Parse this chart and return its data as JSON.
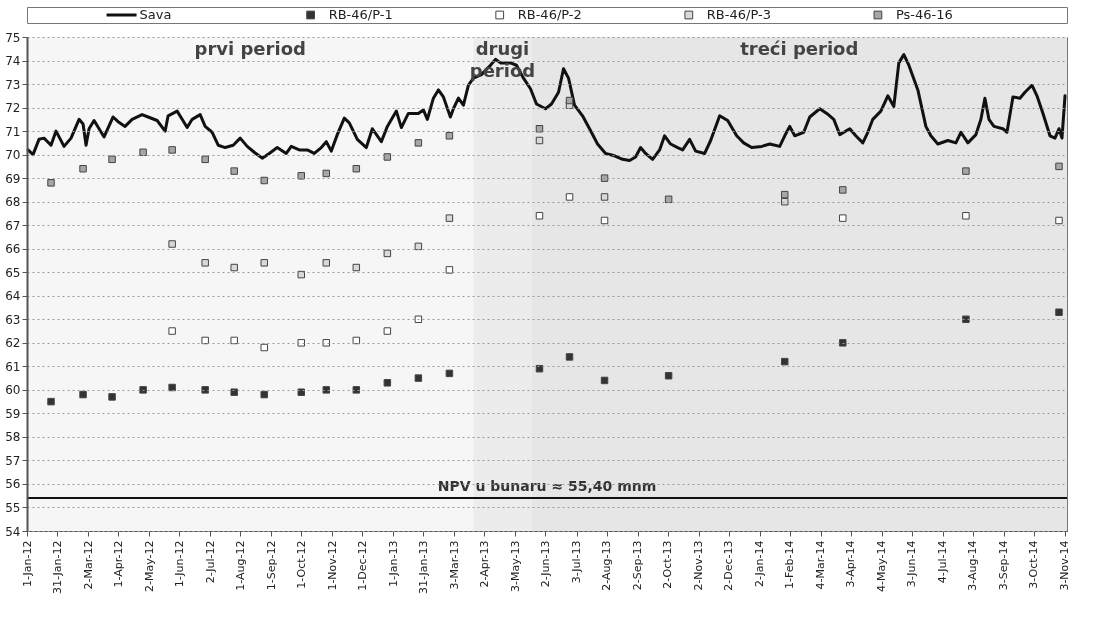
{
  "chart_data": {
    "type": "scatter",
    "grid": "y",
    "legend": "top",
    "xlim": [
      "2012-01-01",
      "2014-11-05"
    ],
    "xticks": [
      {
        "value": "2012-01-01",
        "label": "1-Jan-12"
      },
      {
        "value": "2012-01-31",
        "label": "31-Jan-12"
      },
      {
        "value": "2012-03-02",
        "label": "2-Mar-12"
      },
      {
        "value": "2012-04-01",
        "label": "1-Apr-12"
      },
      {
        "value": "2012-05-02",
        "label": "2-May-12"
      },
      {
        "value": "2012-06-01",
        "label": "1-Jun-12"
      },
      {
        "value": "2012-07-02",
        "label": "2-Jul-12"
      },
      {
        "value": "2012-08-01",
        "label": "1-Aug-12"
      },
      {
        "value": "2012-09-01",
        "label": "1-Sep-12"
      },
      {
        "value": "2012-10-01",
        "label": "1-Oct-12"
      },
      {
        "value": "2012-11-01",
        "label": "1-Nov-12"
      },
      {
        "value": "2012-12-01",
        "label": "1-Dec-12"
      },
      {
        "value": "2013-01-01",
        "label": "1-Jan-13"
      },
      {
        "value": "2013-01-31",
        "label": "31-Jan-13"
      },
      {
        "value": "2013-03-03",
        "label": "3-Mar-13"
      },
      {
        "value": "2013-04-02",
        "label": "2-Apr-13"
      },
      {
        "value": "2013-05-03",
        "label": "3-May-13"
      },
      {
        "value": "2013-06-02",
        "label": "2-Jun-13"
      },
      {
        "value": "2013-07-03",
        "label": "3-Jul-13"
      },
      {
        "value": "2013-08-02",
        "label": "2-Aug-13"
      },
      {
        "value": "2013-09-02",
        "label": "2-Sep-13"
      },
      {
        "value": "2013-10-02",
        "label": "2-Oct-13"
      },
      {
        "value": "2013-11-02",
        "label": "2-Nov-13"
      },
      {
        "value": "2013-12-02",
        "label": "2-Dec-13"
      },
      {
        "value": "2014-01-02",
        "label": "2-Jan-14"
      },
      {
        "value": "2014-02-01",
        "label": "1-Feb-14"
      },
      {
        "value": "2014-03-04",
        "label": "4-Mar-14"
      },
      {
        "value": "2014-04-03",
        "label": "3-Apr-14"
      },
      {
        "value": "2014-05-04",
        "label": "4-May-14"
      },
      {
        "value": "2014-06-03",
        "label": "3-Jun-14"
      },
      {
        "value": "2014-07-04",
        "label": "4-Jul-14"
      },
      {
        "value": "2014-08-03",
        "label": "3-Aug-14"
      },
      {
        "value": "2014-09-03",
        "label": "3-Sep-14"
      },
      {
        "value": "2014-10-03",
        "label": "3-Oct-14"
      },
      {
        "value": "2014-11-03",
        "label": "3-Nov-14"
      }
    ],
    "ylim": [
      54,
      75
    ],
    "yticks": [
      54,
      55,
      56,
      57,
      58,
      59,
      60,
      61,
      62,
      63,
      64,
      65,
      66,
      67,
      68,
      69,
      70,
      71,
      72,
      73,
      74,
      75
    ],
    "x": [
      "2012-01-25",
      "2012-02-26",
      "2012-03-26",
      "2012-04-26",
      "2012-05-25",
      "2012-06-27",
      "2012-07-26",
      "2012-08-25",
      "2012-10-01",
      "2012-10-26",
      "2012-11-25",
      "2012-12-26",
      "2013-01-26",
      "2013-02-26",
      "2013-05-27",
      "2013-06-26",
      "2013-07-31",
      "2013-10-03",
      "2014-01-27",
      "2014-03-26",
      "2014-07-27",
      "2014-10-28"
    ],
    "series": [
      {
        "name": "Sava",
        "type": "line",
        "color": "#111111",
        "x": [
          "2012-01-02",
          "2012-01-07",
          "2012-01-13",
          "2012-01-18",
          "2012-01-25",
          "2012-01-30",
          "2012-02-07",
          "2012-02-14",
          "2012-02-22",
          "2012-02-26",
          "2012-02-29",
          "2012-03-03",
          "2012-03-08",
          "2012-03-13",
          "2012-03-18",
          "2012-03-27",
          "2012-04-01",
          "2012-04-08",
          "2012-04-15",
          "2012-04-25",
          "2012-05-01",
          "2012-05-10",
          "2012-05-18",
          "2012-05-21",
          "2012-05-30",
          "2012-06-04",
          "2012-06-09",
          "2012-06-14",
          "2012-06-22",
          "2012-06-27",
          "2012-07-04",
          "2012-07-10",
          "2012-07-17",
          "2012-07-25",
          "2012-08-01",
          "2012-08-08",
          "2012-08-15",
          "2012-08-23",
          "2012-08-30",
          "2012-09-07",
          "2012-09-16",
          "2012-09-21",
          "2012-09-29",
          "2012-10-07",
          "2012-10-14",
          "2012-10-21",
          "2012-10-26",
          "2012-10-31",
          "2012-11-06",
          "2012-11-13",
          "2012-11-18",
          "2012-11-26",
          "2012-12-05",
          "2012-12-11",
          "2012-12-20",
          "2012-12-26",
          "2013-01-04",
          "2013-01-09",
          "2013-01-16",
          "2013-01-26",
          "2013-01-31",
          "2013-02-04",
          "2013-02-10",
          "2013-02-15",
          "2013-02-20",
          "2013-02-27",
          "2013-03-02",
          "2013-03-07",
          "2013-03-12",
          "2013-03-17",
          "2013-03-22",
          "2013-03-30",
          "2013-04-08",
          "2013-04-13",
          "2013-04-18",
          "2013-04-28",
          "2013-05-04",
          "2013-05-11",
          "2013-05-18",
          "2013-05-24",
          "2013-06-02",
          "2013-06-08",
          "2013-06-15",
          "2013-06-20",
          "2013-06-25",
          "2013-07-01",
          "2013-07-09",
          "2013-07-16",
          "2013-07-24",
          "2013-08-01",
          "2013-08-10",
          "2013-08-18",
          "2013-08-25",
          "2013-08-31",
          "2013-09-05",
          "2013-09-10",
          "2013-09-17",
          "2013-09-24",
          "2013-09-29",
          "2013-10-05",
          "2013-10-12",
          "2013-10-17",
          "2013-10-24",
          "2013-10-30",
          "2013-11-08",
          "2013-11-14",
          "2013-11-23",
          "2013-12-01",
          "2013-12-10",
          "2013-12-17",
          "2013-12-25",
          "2014-01-04",
          "2014-01-12",
          "2014-01-22",
          "2014-01-27",
          "2014-02-01",
          "2014-02-06",
          "2014-02-15",
          "2014-02-21",
          "2014-03-03",
          "2014-03-10",
          "2014-03-17",
          "2014-03-23",
          "2014-04-02",
          "2014-04-08",
          "2014-04-15",
          "2014-04-20",
          "2014-04-25",
          "2014-05-03",
          "2014-05-10",
          "2014-05-16",
          "2014-05-21",
          "2014-05-26",
          "2014-05-31",
          "2014-06-09",
          "2014-06-17",
          "2014-06-22",
          "2014-06-29",
          "2014-07-09",
          "2014-07-17",
          "2014-07-22",
          "2014-07-29",
          "2014-08-06",
          "2014-08-11",
          "2014-08-15",
          "2014-08-19",
          "2014-08-24",
          "2014-09-02",
          "2014-09-06",
          "2014-09-12",
          "2014-09-19",
          "2014-09-24",
          "2014-10-01",
          "2014-10-06",
          "2014-10-12",
          "2014-10-19",
          "2014-10-24",
          "2014-10-28",
          "2014-10-31",
          "2014-11-03"
        ],
        "values": [
          70.2,
          70.0,
          70.65,
          70.7,
          70.4,
          71.0,
          70.35,
          70.7,
          71.5,
          71.3,
          70.4,
          71.1,
          71.45,
          71.1,
          70.75,
          71.6,
          71.4,
          71.2,
          71.5,
          71.7,
          71.6,
          71.45,
          71.0,
          71.65,
          71.85,
          71.5,
          71.15,
          71.5,
          71.7,
          71.2,
          70.95,
          70.4,
          70.3,
          70.4,
          70.7,
          70.35,
          70.1,
          69.85,
          70.05,
          70.3,
          70.05,
          70.35,
          70.2,
          70.2,
          70.05,
          70.3,
          70.55,
          70.15,
          70.85,
          71.55,
          71.35,
          70.65,
          70.3,
          71.1,
          70.55,
          71.2,
          71.85,
          71.15,
          71.75,
          71.75,
          71.9,
          71.5,
          72.4,
          72.75,
          72.45,
          71.6,
          71.95,
          72.4,
          72.1,
          72.95,
          73.25,
          73.4,
          73.8,
          74.05,
          73.9,
          73.9,
          73.8,
          73.25,
          72.8,
          72.15,
          71.95,
          72.15,
          72.65,
          73.65,
          73.25,
          72.1,
          71.65,
          71.1,
          70.45,
          70.05,
          69.95,
          69.8,
          69.75,
          69.9,
          70.3,
          70.05,
          69.8,
          70.2,
          70.8,
          70.45,
          70.3,
          70.2,
          70.65,
          70.15,
          70.05,
          70.6,
          71.65,
          71.45,
          70.8,
          70.5,
          70.3,
          70.35,
          70.45,
          70.35,
          70.8,
          71.2,
          70.8,
          70.95,
          71.6,
          71.95,
          71.75,
          71.5,
          70.85,
          71.1,
          70.8,
          70.5,
          70.95,
          71.5,
          71.85,
          72.5,
          72.05,
          73.9,
          74.25,
          73.8,
          72.75,
          71.2,
          70.8,
          70.45,
          70.6,
          70.5,
          70.95,
          70.5,
          70.85,
          71.5,
          72.4,
          71.5,
          71.2,
          71.1,
          70.95,
          72.45,
          72.4,
          72.65,
          72.95,
          72.5,
          71.75,
          70.8,
          70.7,
          71.1,
          70.7,
          72.5
        ]
      },
      {
        "name": "RB-46/P-1",
        "color": "#333333",
        "marker": "square",
        "values": [
          59.5,
          59.8,
          59.7,
          60.0,
          60.1,
          60.0,
          59.9,
          59.8,
          59.9,
          60.0,
          60.0,
          60.3,
          60.5,
          60.7,
          60.9,
          61.4,
          60.4,
          60.6,
          61.2,
          62.0,
          63.0,
          63.3
        ]
      },
      {
        "name": "RB-46/P-2",
        "color": "#ffffff",
        "marker": "square",
        "values": [
          null,
          null,
          null,
          null,
          62.5,
          62.1,
          62.1,
          61.8,
          62.0,
          62.0,
          62.1,
          62.5,
          63.0,
          65.1,
          67.4,
          68.2,
          67.2,
          null,
          null,
          67.3,
          67.4,
          67.2
        ]
      },
      {
        "name": "RB-46/P-3",
        "color": "#d9d9d9",
        "marker": "square",
        "values": [
          null,
          null,
          null,
          null,
          66.2,
          65.4,
          65.2,
          65.4,
          64.9,
          65.4,
          65.2,
          65.8,
          66.1,
          67.3,
          70.6,
          72.1,
          68.2,
          null,
          68.0,
          null,
          null,
          null
        ]
      },
      {
        "name": "Ps-46-16",
        "color": "#a6a6a6",
        "marker": "square",
        "values": [
          68.8,
          69.4,
          69.8,
          70.1,
          70.2,
          69.8,
          69.3,
          68.9,
          69.1,
          69.2,
          69.4,
          69.9,
          70.5,
          70.8,
          71.1,
          72.3,
          69.0,
          68.1,
          68.3,
          68.5,
          69.3,
          69.5
        ]
      }
    ],
    "ref_lines": [
      {
        "axis": "y",
        "value": 55.4,
        "label": "NPV u bunaru ≈ 55,40 mnm",
        "color": "#111111"
      }
    ],
    "bands": [
      {
        "axis": "x",
        "from": "2012-01-01",
        "to": "2013-03-22",
        "label": "prvi period",
        "color": "#f6f6f6"
      },
      {
        "axis": "x",
        "from": "2013-03-22",
        "to": "2013-05-19",
        "label": "drugi period",
        "color": "#ececec"
      },
      {
        "axis": "x",
        "from": "2013-05-19",
        "to": "2014-11-05",
        "label": "treći period",
        "color": "#e6e6e6"
      }
    ]
  }
}
